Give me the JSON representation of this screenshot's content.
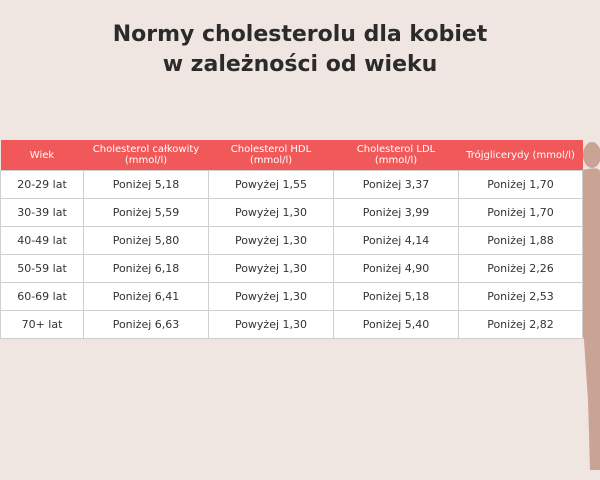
{
  "title": "Normy cholesterolu dla kobiet w zależności od wieku",
  "table": {
    "header": [
      "Wiek",
      "Cholesterol całkowity (mmol/l)",
      "Cholesterol HDL (mmol/l)",
      "Cholesterol LDL (mmol/l)",
      "Trójglicerydy (mmol/l)"
    ],
    "rows": [
      [
        "20-29 lat",
        "Poniżej 5,18",
        "Powyżej 1,55",
        "Poniżej 3,37",
        "Poniżej 1,70"
      ],
      [
        "30-39 lat",
        "Poniżej 5,59",
        "Powyżej 1,30",
        "Poniżej 3,99",
        "Poniżej 1,70"
      ],
      [
        "40-49 lat",
        "Poniżej 5,80",
        "Powyżej 1,30",
        "Poniżej 4,14",
        "Poniżej 1,88"
      ],
      [
        "50-59 lat",
        "Poniżej 6,18",
        "Powyżej 1,30",
        "Poniżej 4,90",
        "Poniżej 2,26"
      ],
      [
        "60-69 lat",
        "Poniżej 6,41",
        "Powyżej 1,30",
        "Poniżej 5,18",
        "Poniżej 2,53"
      ],
      [
        "70+ lat",
        "Poniżej 6,63",
        "Powyżej 1,30",
        "Poniżej 5,40",
        "Poniżej 2,82"
      ]
    ]
  }
}
